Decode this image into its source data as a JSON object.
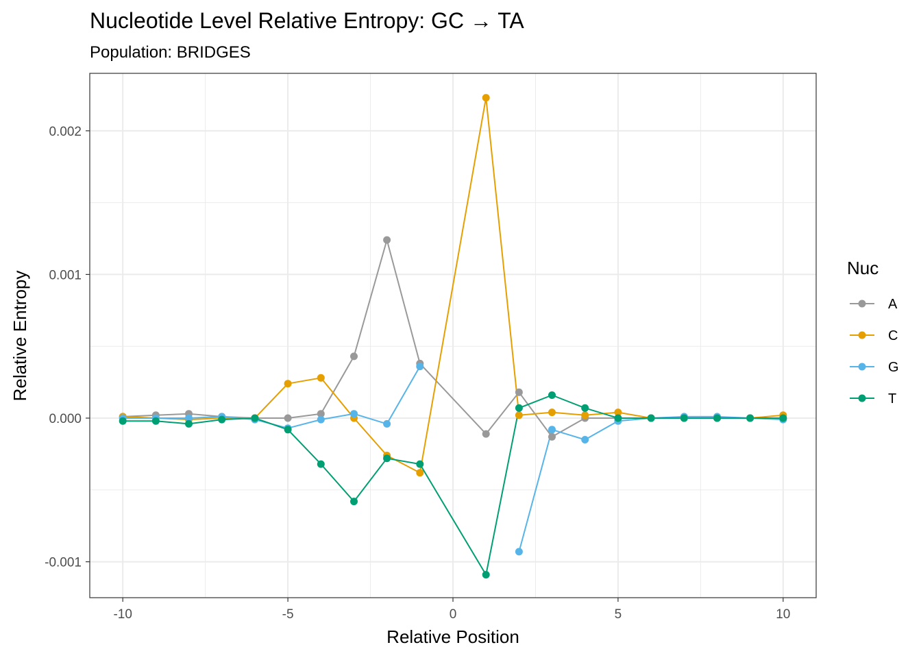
{
  "chart_data": {
    "type": "line",
    "title": "Nucleotide Level Relative Entropy: GC → TA",
    "subtitle": "Population: BRIDGES",
    "xlabel": "Relative Position",
    "ylabel": "Relative Entropy",
    "xlim": [
      -11,
      11
    ],
    "ylim": [
      -0.00125,
      0.0024
    ],
    "x_ticks": [
      -10,
      -5,
      0,
      5,
      10
    ],
    "x_tick_labels": [
      "-10",
      "-5",
      "0",
      "5",
      "10"
    ],
    "y_ticks": [
      -0.001,
      0,
      0.001,
      0.002
    ],
    "y_tick_labels": [
      "-0.001",
      "0.000",
      "0.001",
      "0.002"
    ],
    "grid": true,
    "legend": {
      "title": "Nuc",
      "position": "right"
    },
    "series": [
      {
        "name": "A",
        "color": "#999999",
        "x": [
          -10,
          -9,
          -8,
          -7,
          -6,
          -5,
          -4,
          -3,
          -2,
          -1,
          1,
          2,
          3,
          4,
          5,
          6,
          7,
          8,
          9,
          10
        ],
        "y": [
          1e-05,
          2e-05,
          3e-05,
          1e-05,
          0.0,
          0.0,
          3e-05,
          0.00043,
          0.00124,
          0.00038,
          -0.00011,
          0.00018,
          -0.00013,
          0.0,
          0.0,
          0.0,
          0.0,
          0.0,
          0.0,
          0.0
        ]
      },
      {
        "name": "C",
        "color": "#E69F00",
        "x": [
          -10,
          -9,
          -8,
          -7,
          -6,
          -5,
          -4,
          -3,
          -2,
          -1,
          1,
          2,
          3,
          4,
          5,
          6,
          7,
          8,
          9,
          10
        ],
        "y": [
          1e-05,
          0.0,
          -1e-05,
          0.0,
          0.0,
          0.00024,
          0.00028,
          0.0,
          -0.00026,
          -0.00038,
          0.00223,
          2e-05,
          4e-05,
          2e-05,
          4e-05,
          0.0,
          0.0,
          0.0,
          0.0,
          2e-05
        ]
      },
      {
        "name": "G",
        "color": "#56B4E9",
        "x": [
          -10,
          -9,
          -8,
          -7,
          -6,
          -5,
          -4,
          -3,
          -2,
          -1
        ],
        "y": [
          0.0,
          0.0,
          0.0,
          1e-05,
          -1e-05,
          -7e-05,
          -1e-05,
          3e-05,
          -4e-05,
          0.00036
        ]
      },
      {
        "name": "G",
        "color": "#56B4E9",
        "x": [
          2,
          3,
          4,
          5,
          6,
          7,
          8,
          9,
          10
        ],
        "y": [
          -0.00093,
          -8e-05,
          -0.00015,
          -2e-05,
          0.0,
          1e-05,
          1e-05,
          0.0,
          -1e-05
        ]
      },
      {
        "name": "T",
        "color": "#009E73",
        "x": [
          -10,
          -9,
          -8,
          -7,
          -6,
          -5,
          -4,
          -3,
          -2,
          -1,
          1,
          2,
          3,
          4,
          5,
          6,
          7,
          8,
          9,
          10
        ],
        "y": [
          -2e-05,
          -2e-05,
          -4e-05,
          -1e-05,
          0.0,
          -8e-05,
          -0.00032,
          -0.00058,
          -0.00028,
          -0.00032,
          -0.00109,
          7e-05,
          0.00016,
          7e-05,
          0.0,
          0.0,
          0.0,
          0.0,
          0.0,
          0.0
        ]
      }
    ]
  }
}
